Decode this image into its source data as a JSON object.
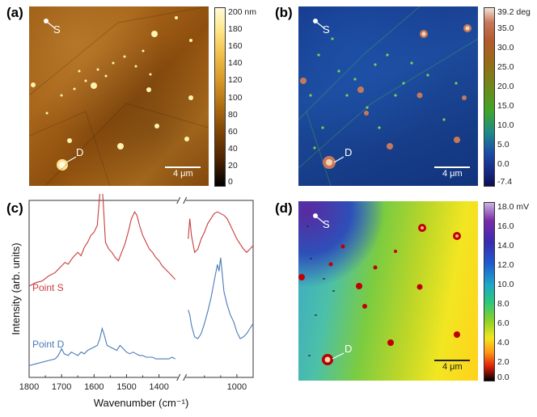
{
  "panels": {
    "a": {
      "label": "(a)",
      "point_s": "S",
      "point_d": "D",
      "scalebar": "4 μm",
      "colorbar_ticks": [
        "200 nm",
        "180",
        "160",
        "140",
        "120",
        "100",
        "80",
        "60",
        "40",
        "20",
        "0"
      ]
    },
    "b": {
      "label": "(b)",
      "point_s": "S",
      "point_d": "D",
      "scalebar": "4 μm",
      "colorbar_ticks": [
        "39.2 deg",
        "35.0",
        "30.0",
        "25.0",
        "20.0",
        "15.0",
        "10.0",
        "5.0",
        "0.0",
        "-7.4"
      ]
    },
    "c": {
      "label": "(c)"
    },
    "d": {
      "label": "(d)",
      "point_s": "S",
      "point_d": "D",
      "scalebar": "4 μm",
      "colorbar_ticks": [
        "18.0 mV",
        "16.0",
        "14.0",
        "12.0",
        "10.0",
        "8.0",
        "6.0",
        "4.0",
        "2.0",
        "0.0"
      ]
    }
  },
  "chart_data": {
    "type": "line",
    "xlabel": "Wavenumber (cm⁻¹)",
    "ylabel": "Intensity (arb. units)",
    "x_ticks": [
      1800,
      1700,
      1600,
      1500,
      1400,
      1000
    ],
    "x_break": [
      1350,
      1150
    ],
    "xlim": [
      1800,
      950
    ],
    "series": [
      {
        "name": "Point S",
        "color": "#c83c3c",
        "points": [
          [
            1800,
            0.3
          ],
          [
            1780,
            0.32
          ],
          [
            1760,
            0.33
          ],
          [
            1740,
            0.36
          ],
          [
            1720,
            0.38
          ],
          [
            1700,
            0.42
          ],
          [
            1690,
            0.44
          ],
          [
            1680,
            0.43
          ],
          [
            1665,
            0.47
          ],
          [
            1650,
            0.5
          ],
          [
            1640,
            0.48
          ],
          [
            1630,
            0.53
          ],
          [
            1620,
            0.56
          ],
          [
            1610,
            0.6
          ],
          [
            1600,
            0.62
          ],
          [
            1590,
            0.66
          ],
          [
            1582,
            0.85
          ],
          [
            1578,
            0.97
          ],
          [
            1572,
            0.8
          ],
          [
            1565,
            0.56
          ],
          [
            1555,
            0.52
          ],
          [
            1545,
            0.5
          ],
          [
            1535,
            0.47
          ],
          [
            1525,
            0.45
          ],
          [
            1515,
            0.5
          ],
          [
            1505,
            0.55
          ],
          [
            1495,
            0.62
          ],
          [
            1485,
            0.7
          ],
          [
            1475,
            0.74
          ],
          [
            1468,
            0.72
          ],
          [
            1460,
            0.66
          ],
          [
            1450,
            0.6
          ],
          [
            1440,
            0.56
          ],
          [
            1430,
            0.52
          ],
          [
            1420,
            0.5
          ],
          [
            1410,
            0.47
          ],
          [
            1400,
            0.45
          ],
          [
            1390,
            0.42
          ],
          [
            1380,
            0.4
          ],
          [
            1370,
            0.38
          ],
          [
            1360,
            0.36
          ],
          [
            1350,
            0.34
          ],
          [
            1150,
            0.58
          ],
          [
            1145,
            0.7
          ],
          [
            1140,
            0.6
          ],
          [
            1130,
            0.5
          ],
          [
            1120,
            0.52
          ],
          [
            1110,
            0.58
          ],
          [
            1100,
            0.62
          ],
          [
            1090,
            0.67
          ],
          [
            1080,
            0.7
          ],
          [
            1070,
            0.73
          ],
          [
            1060,
            0.74
          ],
          [
            1050,
            0.73
          ],
          [
            1040,
            0.72
          ],
          [
            1030,
            0.7
          ],
          [
            1020,
            0.66
          ],
          [
            1010,
            0.62
          ],
          [
            1000,
            0.58
          ],
          [
            990,
            0.55
          ],
          [
            980,
            0.52
          ],
          [
            970,
            0.5
          ],
          [
            960,
            0.52
          ],
          [
            950,
            0.54
          ]
        ]
      },
      {
        "name": "Point D",
        "color": "#4a7ab8",
        "points": [
          [
            1800,
            0.02
          ],
          [
            1780,
            0.03
          ],
          [
            1760,
            0.04
          ],
          [
            1740,
            0.05
          ],
          [
            1720,
            0.06
          ],
          [
            1710,
            0.08
          ],
          [
            1700,
            0.12
          ],
          [
            1692,
            0.09
          ],
          [
            1680,
            0.08
          ],
          [
            1670,
            0.1
          ],
          [
            1660,
            0.09
          ],
          [
            1650,
            0.08
          ],
          [
            1640,
            0.1
          ],
          [
            1630,
            0.09
          ],
          [
            1620,
            0.11
          ],
          [
            1610,
            0.12
          ],
          [
            1600,
            0.13
          ],
          [
            1590,
            0.14
          ],
          [
            1582,
            0.18
          ],
          [
            1575,
            0.24
          ],
          [
            1570,
            0.21
          ],
          [
            1560,
            0.14
          ],
          [
            1550,
            0.13
          ],
          [
            1540,
            0.12
          ],
          [
            1530,
            0.11
          ],
          [
            1520,
            0.14
          ],
          [
            1510,
            0.12
          ],
          [
            1500,
            0.1
          ],
          [
            1490,
            0.09
          ],
          [
            1480,
            0.1
          ],
          [
            1470,
            0.09
          ],
          [
            1460,
            0.08
          ],
          [
            1450,
            0.08
          ],
          [
            1440,
            0.07
          ],
          [
            1430,
            0.07
          ],
          [
            1420,
            0.07
          ],
          [
            1410,
            0.06
          ],
          [
            1400,
            0.06
          ],
          [
            1390,
            0.06
          ],
          [
            1380,
            0.06
          ],
          [
            1370,
            0.06
          ],
          [
            1360,
            0.07
          ],
          [
            1350,
            0.06
          ],
          [
            1150,
            0.35
          ],
          [
            1145,
            0.32
          ],
          [
            1140,
            0.26
          ],
          [
            1130,
            0.19
          ],
          [
            1120,
            0.18
          ],
          [
            1110,
            0.21
          ],
          [
            1100,
            0.27
          ],
          [
            1090,
            0.34
          ],
          [
            1080,
            0.42
          ],
          [
            1072,
            0.5
          ],
          [
            1066,
            0.56
          ],
          [
            1060,
            0.62
          ],
          [
            1055,
            0.58
          ],
          [
            1050,
            0.66
          ],
          [
            1045,
            0.56
          ],
          [
            1040,
            0.46
          ],
          [
            1035,
            0.42
          ],
          [
            1030,
            0.38
          ],
          [
            1020,
            0.32
          ],
          [
            1010,
            0.28
          ],
          [
            1000,
            0.22
          ],
          [
            990,
            0.18
          ],
          [
            980,
            0.19
          ],
          [
            970,
            0.21
          ],
          [
            960,
            0.24
          ],
          [
            950,
            0.27
          ]
        ]
      }
    ]
  }
}
